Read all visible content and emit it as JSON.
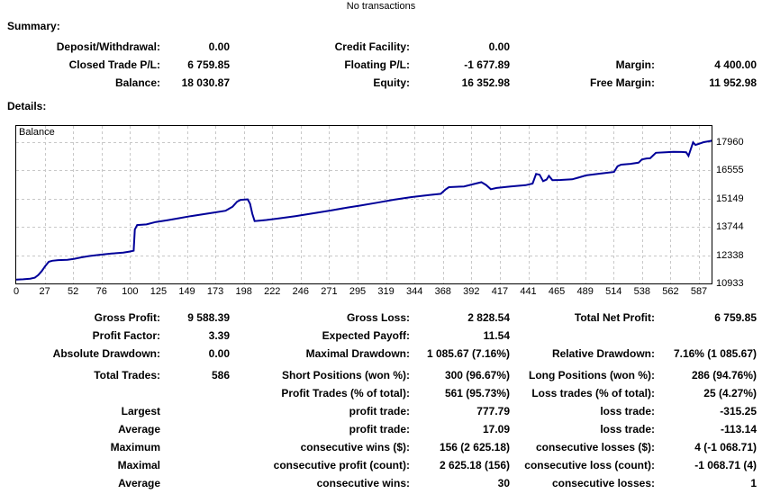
{
  "title": "No transactions",
  "summary": {
    "heading": "Summary:",
    "rows": [
      [
        "Deposit/Withdrawal:",
        "0.00",
        "Credit Facility:",
        "0.00",
        "",
        ""
      ],
      [
        "Closed Trade P/L:",
        "6 759.85",
        "Floating P/L:",
        "-1 677.89",
        "Margin:",
        "4 400.00"
      ],
      [
        "Balance:",
        "18 030.87",
        "Equity:",
        "16 352.98",
        "Free Margin:",
        "11 952.98"
      ]
    ]
  },
  "details": {
    "heading": "Details:",
    "stats_rows": [
      [
        "Gross Profit:",
        "9 588.39",
        "Gross Loss:",
        "2 828.54",
        "Total Net Profit:",
        "6 759.85"
      ],
      [
        "Profit Factor:",
        "3.39",
        "Expected Payoff:",
        "11.54",
        "",
        ""
      ],
      [
        "Absolute Drawdown:",
        "0.00",
        "Maximal Drawdown:",
        "1 085.67 (7.16%)",
        "Relative Drawdown:",
        "7.16% (1 085.67)"
      ]
    ],
    "trade_rows": [
      [
        "Total Trades:",
        "586",
        "Short Positions (won %):",
        "300 (96.67%)",
        "Long Positions (won %):",
        "286 (94.76%)"
      ],
      [
        "",
        "",
        "Profit Trades (% of total):",
        "561 (95.73%)",
        "Loss trades (% of total):",
        "25 (4.27%)"
      ],
      [
        "Largest",
        "",
        "profit trade:",
        "777.79",
        "loss trade:",
        "-315.25"
      ],
      [
        "Average",
        "",
        "profit trade:",
        "17.09",
        "loss trade:",
        "-113.14"
      ],
      [
        "Maximum",
        "",
        "consecutive wins ($):",
        "156 (2 625.18)",
        "consecutive losses ($):",
        "4 (-1 068.71)"
      ],
      [
        "Maximal",
        "",
        "consecutive profit (count):",
        "2 625.18 (156)",
        "consecutive loss (count):",
        "-1 068.71 (4)"
      ],
      [
        "Average",
        "",
        "consecutive wins:",
        "30",
        "consecutive losses:",
        "1"
      ]
    ]
  },
  "chart_data": {
    "type": "line",
    "title": "Balance",
    "line_color": "#000099",
    "grid_color": "#c8c8c8",
    "legend_position": "top-left-inside",
    "grid": "on",
    "x_ticks": [
      0,
      27,
      52,
      76,
      100,
      125,
      149,
      173,
      198,
      222,
      246,
      271,
      295,
      319,
      344,
      368,
      392,
      417,
      441,
      465,
      489,
      514,
      538,
      562,
      587
    ],
    "y_ticks": [
      10933,
      12338,
      13744,
      15149,
      16555,
      17960
    ],
    "xlim": [
      0,
      598
    ],
    "ylim": [
      10933,
      18810
    ],
    "points": [
      [
        0,
        11120
      ],
      [
        6,
        11140
      ],
      [
        12,
        11170
      ],
      [
        16,
        11220
      ],
      [
        19,
        11350
      ],
      [
        22,
        11550
      ],
      [
        25,
        11800
      ],
      [
        28,
        12010
      ],
      [
        31,
        12060
      ],
      [
        36,
        12090
      ],
      [
        44,
        12110
      ],
      [
        50,
        12160
      ],
      [
        56,
        12230
      ],
      [
        63,
        12300
      ],
      [
        72,
        12360
      ],
      [
        82,
        12420
      ],
      [
        92,
        12470
      ],
      [
        98,
        12520
      ],
      [
        101,
        12560
      ],
      [
        102,
        13620
      ],
      [
        104,
        13840
      ],
      [
        112,
        13870
      ],
      [
        120,
        13990
      ],
      [
        130,
        14080
      ],
      [
        140,
        14180
      ],
      [
        150,
        14280
      ],
      [
        160,
        14370
      ],
      [
        170,
        14460
      ],
      [
        180,
        14550
      ],
      [
        186,
        14750
      ],
      [
        190,
        15000
      ],
      [
        193,
        15090
      ],
      [
        199,
        15120
      ],
      [
        201,
        14900
      ],
      [
        203,
        14400
      ],
      [
        205,
        14035
      ],
      [
        210,
        14060
      ],
      [
        215,
        14090
      ],
      [
        225,
        14160
      ],
      [
        240,
        14280
      ],
      [
        255,
        14420
      ],
      [
        270,
        14560
      ],
      [
        285,
        14710
      ],
      [
        295,
        14800
      ],
      [
        310,
        14950
      ],
      [
        325,
        15100
      ],
      [
        340,
        15230
      ],
      [
        355,
        15330
      ],
      [
        365,
        15390
      ],
      [
        369,
        15600
      ],
      [
        372,
        15720
      ],
      [
        385,
        15760
      ],
      [
        395,
        15900
      ],
      [
        400,
        15970
      ],
      [
        404,
        15830
      ],
      [
        408,
        15620
      ],
      [
        413,
        15680
      ],
      [
        425,
        15760
      ],
      [
        438,
        15820
      ],
      [
        444,
        15900
      ],
      [
        447,
        16380
      ],
      [
        450,
        16340
      ],
      [
        453,
        16020
      ],
      [
        456,
        16100
      ],
      [
        458,
        16280
      ],
      [
        461,
        16070
      ],
      [
        468,
        16080
      ],
      [
        478,
        16110
      ],
      [
        483,
        16190
      ],
      [
        490,
        16310
      ],
      [
        500,
        16380
      ],
      [
        508,
        16440
      ],
      [
        514,
        16480
      ],
      [
        517,
        16760
      ],
      [
        520,
        16840
      ],
      [
        528,
        16880
      ],
      [
        535,
        16940
      ],
      [
        538,
        17100
      ],
      [
        542,
        17150
      ],
      [
        545,
        17160
      ],
      [
        550,
        17430
      ],
      [
        558,
        17460
      ],
      [
        565,
        17480
      ],
      [
        572,
        17470
      ],
      [
        576,
        17460
      ],
      [
        578,
        17280
      ],
      [
        580,
        17620
      ],
      [
        582,
        17950
      ],
      [
        584,
        17820
      ],
      [
        587,
        17880
      ],
      [
        591,
        17960
      ],
      [
        595,
        18000
      ],
      [
        598,
        18030
      ]
    ]
  }
}
